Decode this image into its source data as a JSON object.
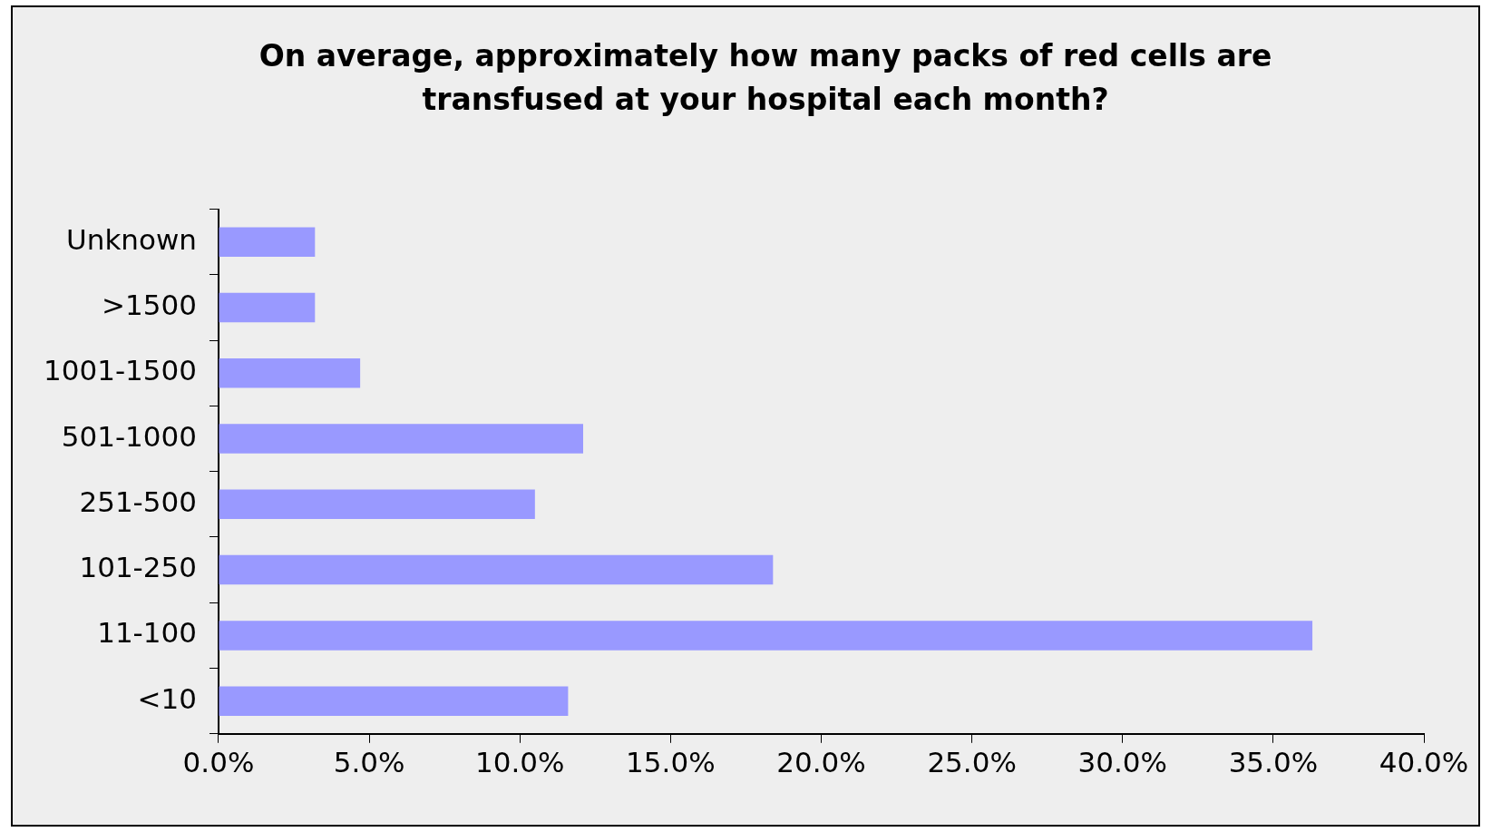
{
  "chart_data": {
    "type": "bar",
    "orientation": "horizontal",
    "title": "On average, approximately how many packs of red cells are transfused at your hospital each month?",
    "categories": [
      "Unknown",
      ">1500",
      "1001-1500",
      "501-1000",
      "251-500",
      "101-250",
      "11-100",
      "<10"
    ],
    "values": [
      3.2,
      3.2,
      4.7,
      12.1,
      10.5,
      18.4,
      36.3,
      11.6
    ],
    "color": "#9999ff",
    "xlim": [
      0,
      40
    ],
    "xticks": [
      {
        "value": 0,
        "label": "0.0%"
      },
      {
        "value": 5,
        "label": "5.0%"
      },
      {
        "value": 10,
        "label": "10.0%"
      },
      {
        "value": 15,
        "label": "15.0%"
      },
      {
        "value": 20,
        "label": "20.0%"
      },
      {
        "value": 25,
        "label": "25.0%"
      },
      {
        "value": 30,
        "label": "30.0%"
      },
      {
        "value": 35,
        "label": "35.0%"
      },
      {
        "value": 40,
        "label": "40.0%"
      }
    ],
    "grid": false,
    "legend": false
  }
}
